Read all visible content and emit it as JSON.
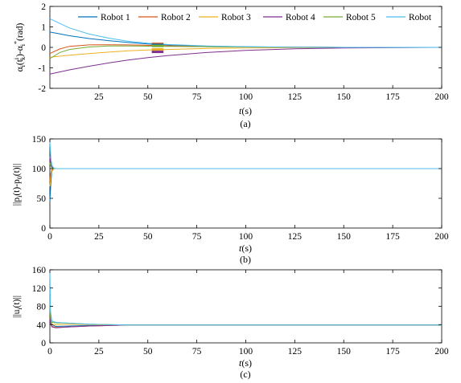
{
  "chart_data": [
    {
      "type": "line",
      "panel_label": "(a)",
      "ylabel": "α_i(t^i_k)-α*_i (rad)",
      "ylabel_parts": {
        "base": "α",
        "sub_i": "i",
        "paren_open": "(t",
        "sup_i": "i",
        "sub_k": "k",
        "mid": ")-α",
        "sub_i2": "i",
        "sup_star": "*",
        "tail": "(rad)"
      },
      "xlabel": {
        "italic": "t",
        "unit": "(s)"
      },
      "xlim": [
        0,
        200
      ],
      "ylim": [
        -2,
        2
      ],
      "xticks": [
        25,
        50,
        75,
        100,
        125,
        150,
        175,
        200
      ],
      "yticks": [
        -2,
        -1,
        0,
        1,
        2
      ],
      "legend_position": "top",
      "series": [
        {
          "name": "Robot 1",
          "color": "#0072BD",
          "x": [
            0,
            10,
            20,
            30,
            40,
            50,
            60,
            80,
            100,
            125,
            150,
            200
          ],
          "y": [
            0.75,
            0.57,
            0.43,
            0.33,
            0.24,
            0.17,
            0.12,
            0.06,
            0.03,
            0.01,
            0.0,
            0.0
          ]
        },
        {
          "name": "Robot 2",
          "color": "#D95319",
          "x": [
            0,
            5,
            10,
            20,
            30,
            40,
            50,
            60,
            80,
            100,
            125,
            150,
            200
          ],
          "y": [
            -0.3,
            -0.08,
            0.05,
            0.12,
            0.13,
            0.12,
            0.1,
            0.08,
            0.04,
            0.02,
            0.01,
            0.0,
            0.0
          ]
        },
        {
          "name": "Robot 3",
          "color": "#EDB120",
          "x": [
            0,
            10,
            20,
            30,
            40,
            50,
            60,
            80,
            100,
            125,
            150,
            200
          ],
          "y": [
            -0.48,
            -0.38,
            -0.3,
            -0.23,
            -0.17,
            -0.13,
            -0.1,
            -0.05,
            -0.03,
            -0.01,
            0.0,
            0.0
          ]
        },
        {
          "name": "Robot 4",
          "color": "#7E2F8E",
          "x": [
            0,
            10,
            20,
            30,
            40,
            50,
            60,
            80,
            100,
            125,
            150,
            200
          ],
          "y": [
            -1.3,
            -1.1,
            -0.92,
            -0.76,
            -0.62,
            -0.5,
            -0.4,
            -0.25,
            -0.15,
            -0.07,
            -0.03,
            0.0
          ]
        },
        {
          "name": "Robot 5",
          "color": "#77AC30",
          "x": [
            0,
            5,
            10,
            20,
            30,
            40,
            50,
            60,
            80,
            100,
            125,
            150,
            200
          ],
          "y": [
            -0.55,
            -0.25,
            -0.1,
            0.02,
            0.07,
            0.07,
            0.06,
            0.05,
            0.03,
            0.02,
            0.01,
            0.0,
            0.0
          ]
        },
        {
          "name": "Robot",
          "color": "#4DBEEE",
          "x": [
            0,
            10,
            20,
            30,
            40,
            50,
            60,
            80,
            100,
            125,
            150,
            200
          ],
          "y": [
            1.4,
            0.95,
            0.65,
            0.45,
            0.3,
            0.2,
            0.14,
            0.07,
            0.03,
            0.01,
            0.0,
            0.0
          ]
        }
      ],
      "event_markers": [
        {
          "x_from": 52,
          "x_to": 58,
          "y": 0.17,
          "color": "#D95319"
        },
        {
          "x_from": 52,
          "x_to": 58,
          "y": 0.12,
          "color": "#0072BD"
        },
        {
          "x_from": 52,
          "x_to": 58,
          "y": 0.07,
          "color": "#77AC30"
        },
        {
          "x_from": 52,
          "x_to": 58,
          "y": -0.1,
          "color": "#EDB120"
        },
        {
          "x_from": 52,
          "x_to": 58,
          "y": -0.22,
          "color": "#7E2F8E"
        }
      ]
    },
    {
      "type": "line",
      "panel_label": "(b)",
      "ylabel": "||p_i(t)-p_0(t)||",
      "ylabel_parts": {
        "a": "||p",
        "sub_i": "i",
        "b": "(t)-p",
        "sub_0": "0",
        "c": "(t)||"
      },
      "xlabel": {
        "italic": "t",
        "unit": "(s)"
      },
      "xlim": [
        0,
        200
      ],
      "ylim": [
        0,
        150
      ],
      "xticks": [
        0,
        25,
        50,
        75,
        100,
        125,
        150,
        175,
        200
      ],
      "yticks": [
        0,
        50,
        100,
        150
      ],
      "series": [
        {
          "name": "Robot 1",
          "color": "#0072BD",
          "x": [
            0,
            0.5,
            1,
            2,
            3,
            5,
            200
          ],
          "y": [
            45,
            75,
            95,
            100,
            100,
            100,
            100
          ]
        },
        {
          "name": "Robot 2",
          "color": "#D95319",
          "x": [
            0,
            0.5,
            1,
            2,
            3,
            5,
            200
          ],
          "y": [
            80,
            92,
            98,
            100,
            100,
            100,
            100
          ]
        },
        {
          "name": "Robot 3",
          "color": "#EDB120",
          "x": [
            0,
            0.5,
            1,
            2,
            3,
            5,
            200
          ],
          "y": [
            70,
            88,
            96,
            100,
            100,
            100,
            100
          ]
        },
        {
          "name": "Robot 4",
          "color": "#7E2F8E",
          "x": [
            0,
            0.5,
            1,
            2,
            3,
            5,
            200
          ],
          "y": [
            120,
            108,
            103,
            100,
            100,
            100,
            100
          ]
        },
        {
          "name": "Robot 5",
          "color": "#77AC30",
          "x": [
            0,
            0.5,
            1,
            2,
            3,
            5,
            200
          ],
          "y": [
            110,
            104,
            101,
            100,
            100,
            100,
            100
          ]
        },
        {
          "name": "Robot",
          "color": "#4DBEEE",
          "x": [
            0,
            0.5,
            1,
            2,
            3,
            5,
            200
          ],
          "y": [
            145,
            118,
            106,
            101,
            100,
            100,
            100
          ]
        }
      ]
    },
    {
      "type": "line",
      "panel_label": "(c)",
      "ylabel": "||u_i(t)||",
      "ylabel_parts": {
        "a": "||u",
        "sub_i": "i",
        "b": "(t)||"
      },
      "xlabel": {
        "italic": "t",
        "unit": "(s)"
      },
      "xlim": [
        0,
        200
      ],
      "ylim": [
        0,
        160
      ],
      "xticks": [
        0,
        25,
        50,
        75,
        100,
        125,
        150,
        175,
        200
      ],
      "yticks": [
        0,
        40,
        80,
        120,
        160
      ],
      "series": [
        {
          "name": "Robot 1",
          "color": "#0072BD",
          "x": [
            0,
            0.3,
            1,
            3,
            10,
            20,
            30,
            40,
            200
          ],
          "y": [
            130,
            60,
            40,
            36,
            37,
            38,
            39,
            39,
            39
          ]
        },
        {
          "name": "Robot 2",
          "color": "#D95319",
          "x": [
            0,
            0.3,
            1,
            3,
            10,
            20,
            30,
            40,
            200
          ],
          "y": [
            100,
            50,
            36,
            34,
            35,
            37,
            38,
            39,
            39
          ]
        },
        {
          "name": "Robot 3",
          "color": "#EDB120",
          "x": [
            0,
            0.3,
            1,
            3,
            10,
            20,
            30,
            40,
            200
          ],
          "y": [
            90,
            48,
            40,
            40,
            41,
            40,
            39,
            39,
            39
          ]
        },
        {
          "name": "Robot 4",
          "color": "#7E2F8E",
          "x": [
            0,
            0.3,
            1,
            3,
            10,
            20,
            30,
            40,
            200
          ],
          "y": [
            110,
            45,
            35,
            33,
            35,
            37,
            38,
            39,
            39
          ]
        },
        {
          "name": "Robot 5",
          "color": "#77AC30",
          "x": [
            0,
            0.3,
            1,
            3,
            10,
            20,
            30,
            40,
            200
          ],
          "y": [
            120,
            55,
            45,
            44,
            43,
            41,
            40,
            39,
            39
          ]
        },
        {
          "name": "Robot",
          "color": "#4DBEEE",
          "x": [
            0,
            0.3,
            1,
            3,
            10,
            20,
            30,
            40,
            200
          ],
          "y": [
            158,
            70,
            48,
            45,
            43,
            41,
            40,
            39,
            39
          ]
        }
      ]
    }
  ]
}
